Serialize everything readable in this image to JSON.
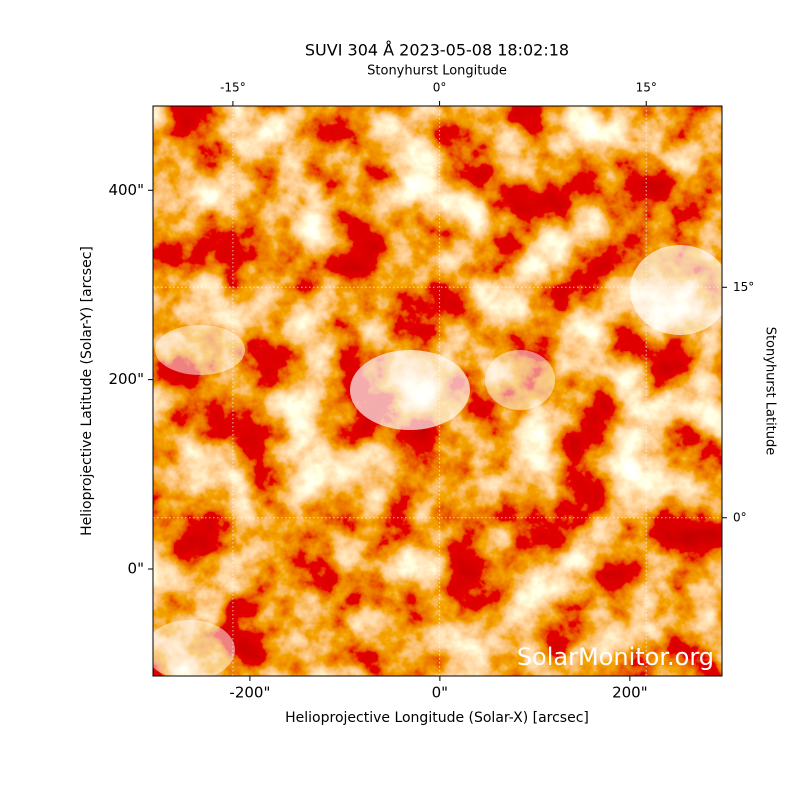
{
  "chart_data": {
    "type": "image",
    "title": "SUVI 304 Å 2023-05-08 18:02:18",
    "xlabel": "Helioprojective Longitude (Solar-X) [arcsec]",
    "ylabel": "Helioprojective Latitude (Solar-Y) [arcsec]",
    "x2label": "Stonyhurst Longitude",
    "y2label": "Stonyhurst Latitude",
    "xlim": [
      -302,
      297
    ],
    "ylim": [
      -113,
      489
    ],
    "xticks": [
      {
        "value": -200,
        "label": "-200\""
      },
      {
        "value": 0,
        "label": "0\""
      },
      {
        "value": 200,
        "label": "200\""
      }
    ],
    "yticks": [
      {
        "value": 0,
        "label": "0\""
      },
      {
        "value": 200,
        "label": "200\""
      },
      {
        "value": 400,
        "label": "400\""
      }
    ],
    "x2lim": [
      -20.8,
      20.5
    ],
    "x2ticks": [
      {
        "value": -15,
        "label": "-15°"
      },
      {
        "value": 0,
        "label": "0°"
      },
      {
        "value": 15,
        "label": "15°"
      }
    ],
    "y2lim": [
      -10.3,
      26.8
    ],
    "y2ticks": [
      {
        "value": 0,
        "label": "0°"
      },
      {
        "value": 15,
        "label": "15°"
      }
    ],
    "grid": true,
    "watermark": "SolarMonitor.org"
  }
}
